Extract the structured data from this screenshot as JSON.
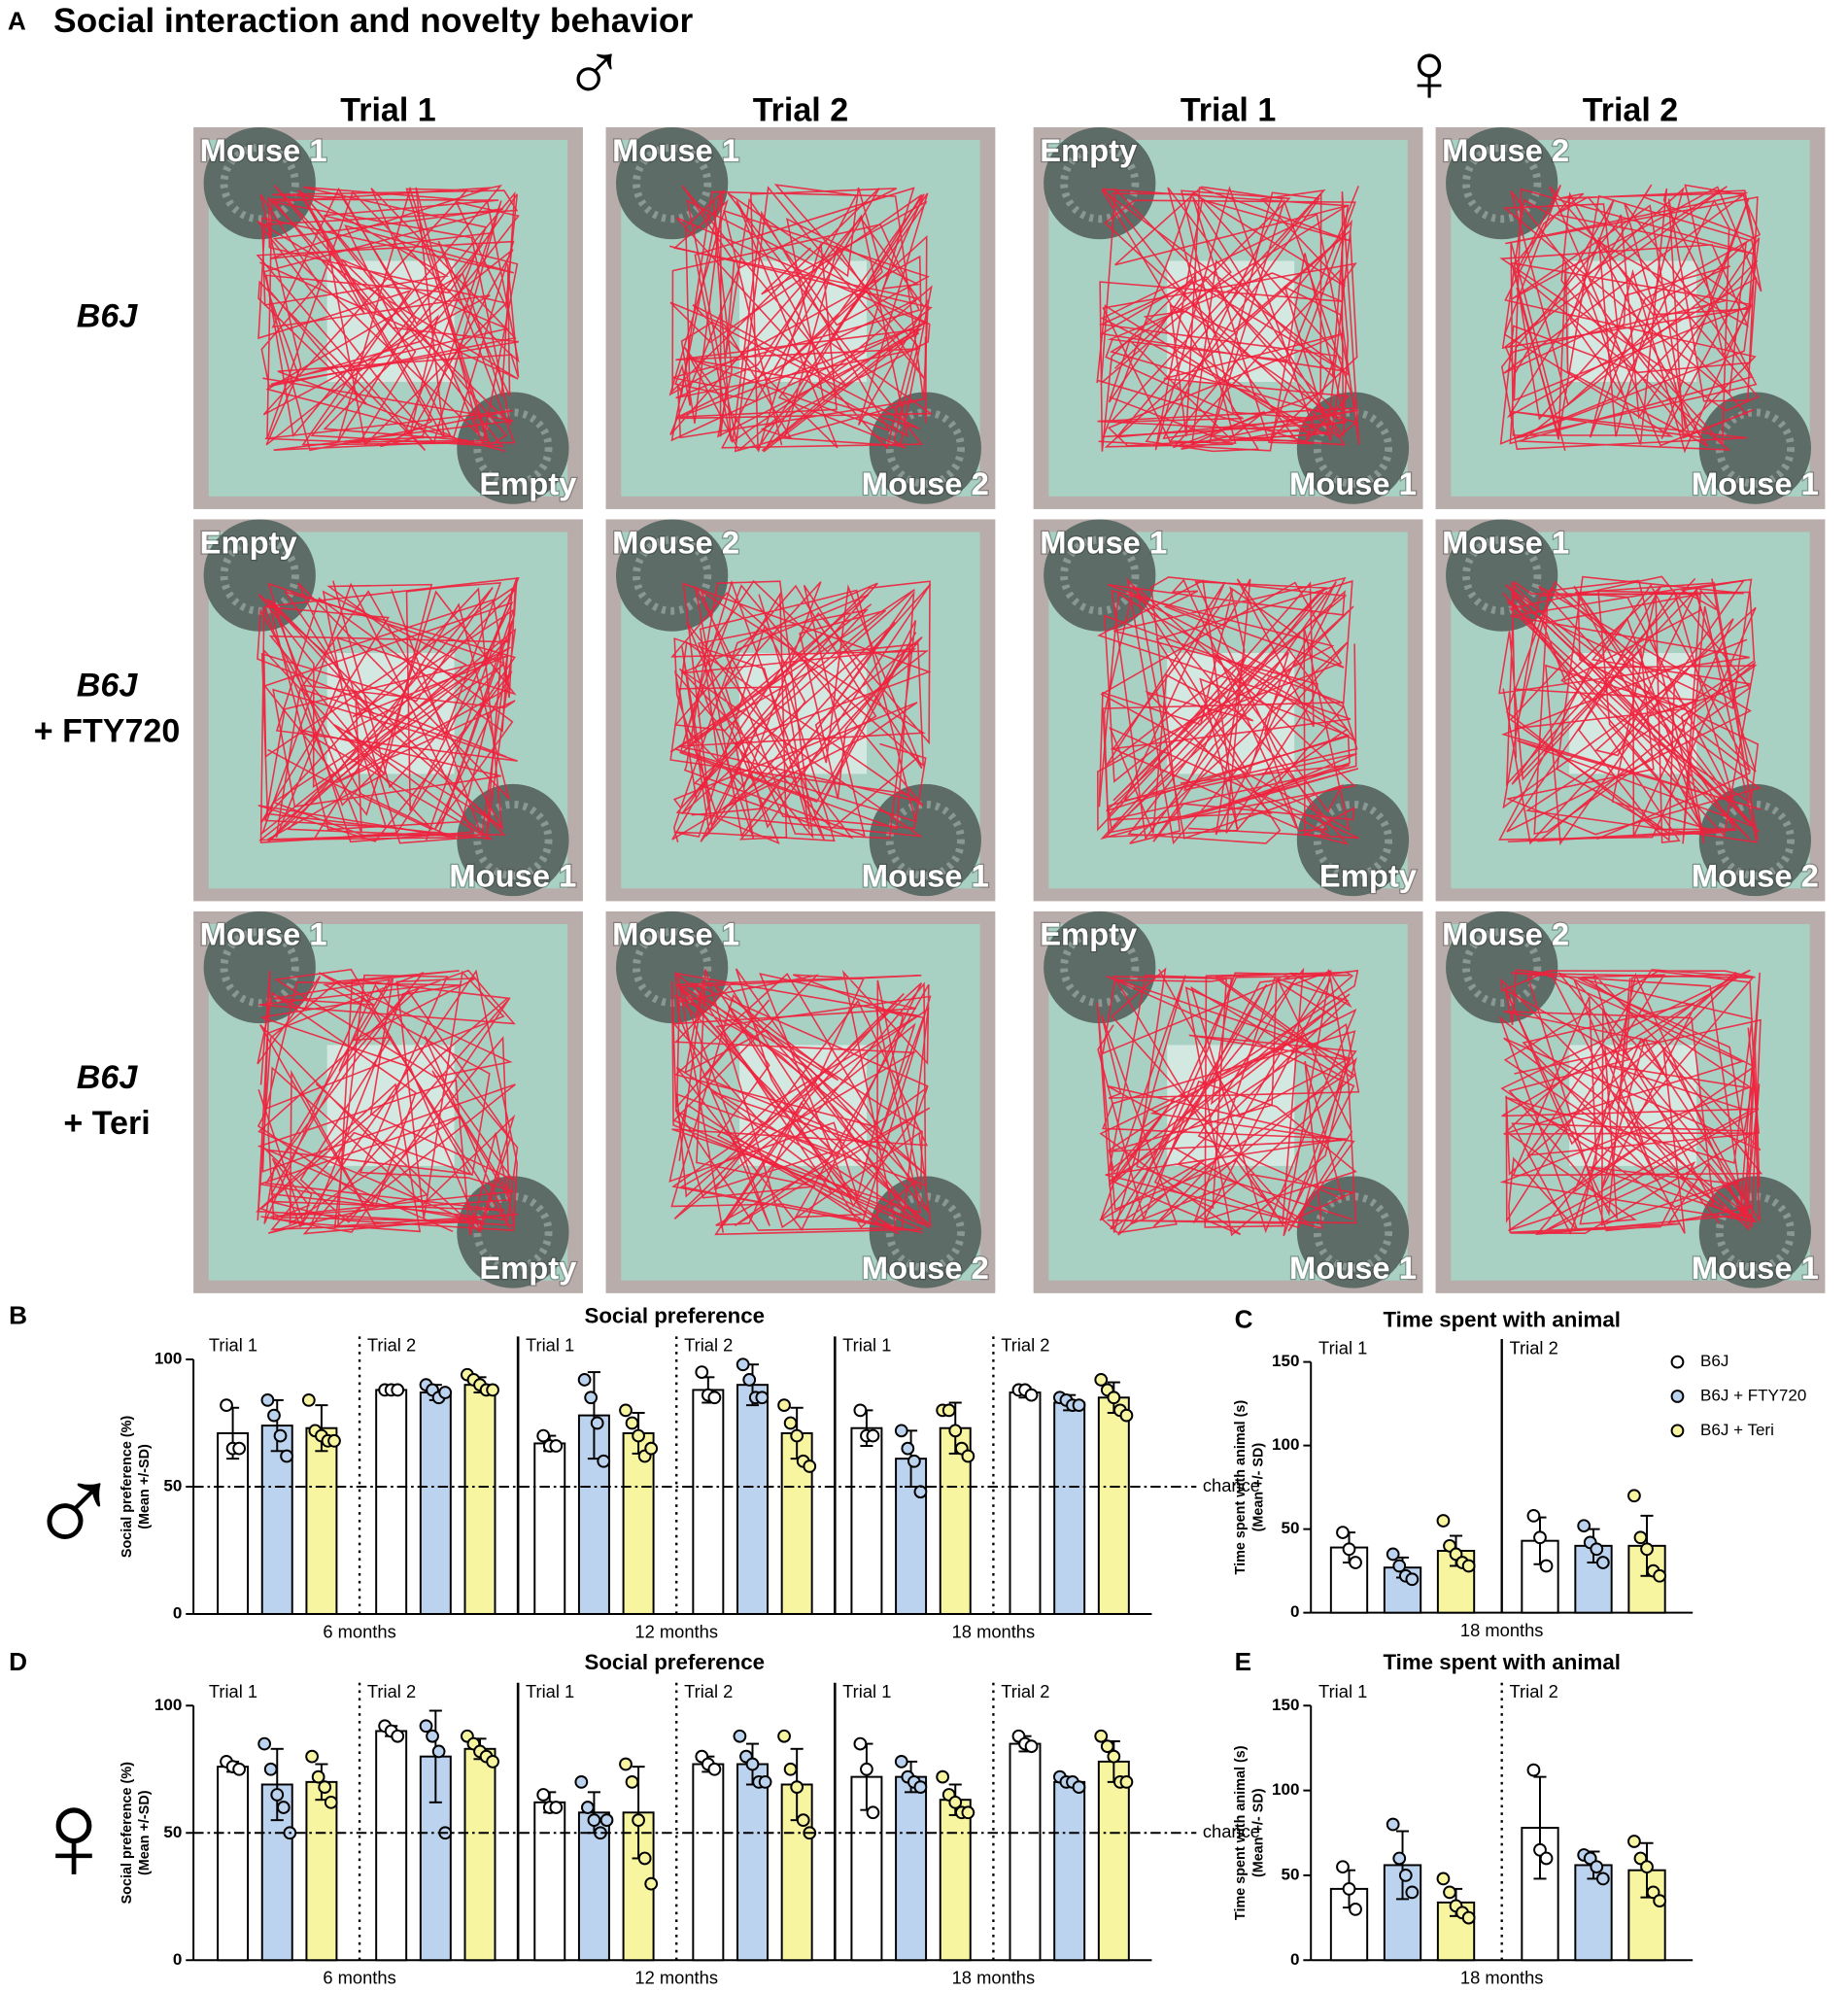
{
  "panel_a": {
    "letter": "A",
    "title": "Social interaction and novelty behavior",
    "sexes": [
      {
        "symbol": "♂",
        "columns": [
          "Trial 1",
          "Trial 2"
        ]
      },
      {
        "symbol": "♀",
        "columns": [
          "Trial 1",
          "Trial 2"
        ]
      }
    ],
    "rows": [
      {
        "label": [
          "B6J"
        ],
        "cells": [
          {
            "top": "Mouse 1",
            "bottom": "Empty"
          },
          {
            "top": "Mouse 1",
            "bottom": "Mouse 2"
          },
          {
            "top": "Empty",
            "bottom": "Mouse 1"
          },
          {
            "top": "Mouse 2",
            "bottom": "Mouse 1"
          }
        ]
      },
      {
        "label": [
          "B6J",
          "+ FTY720"
        ],
        "cells": [
          {
            "top": "Empty",
            "bottom": "Mouse 1"
          },
          {
            "top": "Mouse 2",
            "bottom": "Mouse 1"
          },
          {
            "top": "Mouse 1",
            "bottom": "Empty"
          },
          {
            "top": "Mouse 1",
            "bottom": "Mouse 2"
          }
        ]
      },
      {
        "label": [
          "B6J",
          "+ Teri"
        ],
        "cells": [
          {
            "top": "Mouse 1",
            "bottom": "Empty"
          },
          {
            "top": "Mouse 1",
            "bottom": "Mouse 2"
          },
          {
            "top": "Empty",
            "bottom": "Mouse 1"
          },
          {
            "top": "Mouse 2",
            "bottom": "Mouse 1"
          }
        ]
      }
    ]
  },
  "chart_data": [
    {
      "type": "bar",
      "panel": "B",
      "sex": "♂",
      "title": "Social preference",
      "ylabel": [
        "Social preference (%)",
        "(Mean +/-SD)"
      ],
      "ylim": [
        0,
        100
      ],
      "yticks": [
        0,
        50,
        100
      ],
      "groups": [
        {
          "label": "6 months",
          "trials": [
            "Trial 1",
            "Trial 2"
          ]
        },
        {
          "label": "12 months",
          "trials": [
            "Trial 1",
            "Trial 2"
          ]
        },
        {
          "label": "18 months",
          "trials": [
            "Trial 1",
            "Trial 2"
          ]
        }
      ],
      "separators": {
        "trial": "dotted",
        "group": "solid"
      },
      "reference_line": {
        "value": 50,
        "label": "chance"
      },
      "series": [
        {
          "color": "#ffffff",
          "values": [
            71,
            88,
            67,
            88,
            73,
            87
          ],
          "errors": [
            10,
            1,
            3,
            5,
            7,
            2
          ],
          "points": [
            [
              82,
              65,
              65
            ],
            [
              88,
              88,
              88
            ],
            [
              70,
              66,
              66
            ],
            [
              95,
              86,
              85
            ],
            [
              80,
              70,
              70
            ],
            [
              88,
              88,
              86
            ]
          ]
        },
        {
          "color": "#bcd3ef",
          "values": [
            74,
            87,
            78,
            90,
            61,
            83
          ],
          "errors": [
            10,
            3,
            17,
            8,
            11,
            3
          ],
          "points": [
            [
              84,
              78,
              70,
              62
            ],
            [
              90,
              88,
              85,
              87
            ],
            [
              92,
              85,
              75,
              60
            ],
            [
              98,
              92,
              85,
              85
            ],
            [
              72,
              65,
              60,
              48
            ],
            [
              85,
              84,
              82,
              82
            ]
          ]
        },
        {
          "color": "#f8f5a0",
          "values": [
            73,
            90,
            71,
            71,
            73,
            85
          ],
          "errors": [
            9,
            3,
            8,
            10,
            10,
            6
          ],
          "points": [
            [
              84,
              72,
              70,
              68,
              68
            ],
            [
              94,
              92,
              90,
              88,
              88
            ],
            [
              80,
              75,
              70,
              62,
              65
            ],
            [
              82,
              75,
              70,
              60,
              58
            ],
            [
              80,
              80,
              72,
              65,
              62
            ],
            [
              92,
              88,
              85,
              80,
              78
            ]
          ]
        }
      ]
    },
    {
      "type": "bar",
      "panel": "C",
      "title": "Time spent with animal",
      "ylabel": [
        "Time spent with animal (s)",
        "(Mean +/- SD)"
      ],
      "ylim": [
        0,
        150
      ],
      "yticks": [
        0,
        50,
        100,
        150
      ],
      "groups": [
        {
          "label": "18 months",
          "trials": [
            "Trial 1",
            "Trial 2"
          ]
        }
      ],
      "separators": {
        "trial": "solid",
        "group": "solid"
      },
      "legend": true,
      "series": [
        {
          "name": "B6J",
          "color": "#ffffff",
          "values": [
            39,
            43
          ],
          "errors": [
            9,
            14
          ],
          "points": [
            [
              48,
              38,
              30
            ],
            [
              58,
              45,
              28
            ]
          ]
        },
        {
          "name": "B6J + FTY720",
          "color": "#bcd3ef",
          "values": [
            27,
            40
          ],
          "errors": [
            6,
            10
          ],
          "points": [
            [
              35,
              28,
              22,
              20
            ],
            [
              52,
              42,
              38,
              30
            ]
          ]
        },
        {
          "name": "B6J + Teri",
          "color": "#f8f5a0",
          "values": [
            37,
            40
          ],
          "errors": [
            9,
            18
          ],
          "points": [
            [
              55,
              40,
              35,
              30,
              28
            ],
            [
              70,
              45,
              38,
              25,
              22
            ]
          ]
        }
      ]
    },
    {
      "type": "bar",
      "panel": "D",
      "sex": "♀",
      "title": "Social preference",
      "ylabel": [
        "Social preference (%)",
        "(Mean +/-SD)"
      ],
      "ylim": [
        0,
        100
      ],
      "yticks": [
        0,
        50,
        100
      ],
      "groups": [
        {
          "label": "6 months",
          "trials": [
            "Trial 1",
            "Trial 2"
          ]
        },
        {
          "label": "12 months",
          "trials": [
            "Trial 1",
            "Trial 2"
          ]
        },
        {
          "label": "18 months",
          "trials": [
            "Trial 1",
            "Trial 2"
          ]
        }
      ],
      "separators": {
        "trial": "dotted",
        "group": "solid"
      },
      "reference_line": {
        "value": 50,
        "label": "chance"
      },
      "series": [
        {
          "color": "#ffffff",
          "values": [
            76,
            90,
            62,
            77,
            72,
            85
          ],
          "errors": [
            2,
            2,
            4,
            3,
            13,
            3
          ],
          "points": [
            [
              78,
              76,
              75
            ],
            [
              92,
              90,
              88
            ],
            [
              65,
              60,
              60
            ],
            [
              80,
              77,
              75
            ],
            [
              85,
              75,
              58
            ],
            [
              88,
              85,
              84
            ]
          ]
        },
        {
          "color": "#bcd3ef",
          "values": [
            69,
            80,
            58,
            77,
            72,
            70
          ],
          "errors": [
            14,
            18,
            8,
            8,
            6,
            2
          ],
          "points": [
            [
              85,
              75,
              65,
              60,
              50
            ],
            [
              92,
              88,
              82,
              50
            ],
            [
              70,
              60,
              55,
              50,
              55
            ],
            [
              88,
              80,
              77,
              70,
              70
            ],
            [
              78,
              72,
              70,
              68
            ],
            [
              72,
              70,
              70,
              68
            ]
          ]
        },
        {
          "color": "#f8f5a0",
          "values": [
            70,
            83,
            58,
            69,
            63,
            78
          ],
          "errors": [
            7,
            4,
            18,
            14,
            6,
            8
          ],
          "points": [
            [
              80,
              72,
              68,
              62
            ],
            [
              88,
              85,
              82,
              80,
              78
            ],
            [
              77,
              70,
              55,
              40,
              30
            ],
            [
              88,
              75,
              68,
              55,
              50
            ],
            [
              72,
              65,
              62,
              58,
              58
            ],
            [
              88,
              84,
              80,
              70,
              70
            ]
          ]
        }
      ]
    },
    {
      "type": "bar",
      "panel": "E",
      "title": "Time spent with animal",
      "ylabel": [
        "Time spent with animal (s)",
        "(Mean +/- SD)"
      ],
      "ylim": [
        0,
        150
      ],
      "yticks": [
        0,
        50,
        100,
        150
      ],
      "groups": [
        {
          "label": "18 months",
          "trials": [
            "Trial 1",
            "Trial 2"
          ]
        }
      ],
      "separators": {
        "trial": "dotted",
        "group": "solid"
      },
      "series": [
        {
          "color": "#ffffff",
          "values": [
            42,
            78
          ],
          "errors": [
            11,
            30
          ],
          "points": [
            [
              55,
              42,
              30
            ],
            [
              112,
              65,
              60
            ]
          ]
        },
        {
          "color": "#bcd3ef",
          "values": [
            56,
            56
          ],
          "errors": [
            20,
            8
          ],
          "points": [
            [
              80,
              60,
              50,
              40
            ],
            [
              62,
              60,
              55,
              48
            ]
          ]
        },
        {
          "color": "#f8f5a0",
          "values": [
            34,
            53
          ],
          "errors": [
            8,
            16
          ],
          "points": [
            [
              48,
              40,
              32,
              28,
              25
            ],
            [
              70,
              60,
              55,
              40,
              35
            ]
          ]
        }
      ]
    }
  ]
}
